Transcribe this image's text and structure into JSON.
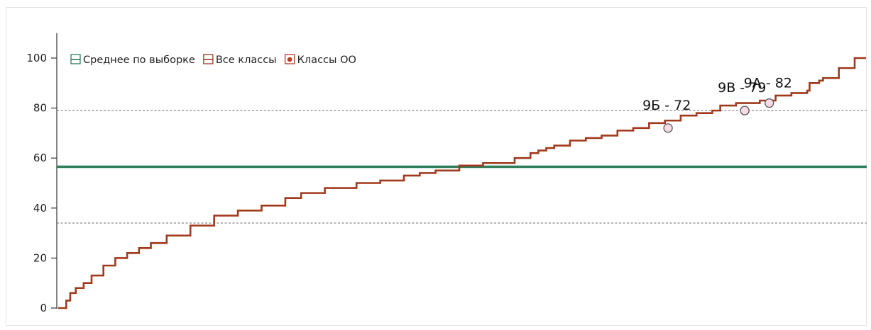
{
  "chart_data": {
    "type": "line",
    "title": "",
    "xlabel": "",
    "ylabel": "",
    "ylim": [
      0,
      110
    ],
    "y_ticks": [
      0,
      20,
      40,
      60,
      80,
      100
    ],
    "grid": false,
    "legend_position": "top-left",
    "legend": [
      {
        "label": "Среднее по выборке",
        "color": "#2e7d5b"
      },
      {
        "label": "Все классы",
        "color": "#a0391c"
      },
      {
        "label": "Классы ОО",
        "color": "#c0392b"
      }
    ],
    "mean_line": {
      "value": 56.5,
      "color": "#2e7d5b"
    },
    "reference_lines": [
      {
        "value": 79,
        "style": "dashed",
        "color": "#888888"
      },
      {
        "value": 34,
        "style": "dashed",
        "color": "#888888"
      }
    ],
    "series": [
      {
        "type": "step",
        "color": "#a0391c",
        "x": [
          0,
          0.3,
          0.8,
          1.5,
          2.5,
          3.5,
          5,
          6.5,
          8,
          9.5,
          11,
          13,
          16,
          19,
          22,
          25,
          28,
          30,
          33,
          37,
          40,
          43,
          45,
          47,
          50,
          53,
          55,
          57,
          59,
          60,
          61,
          62,
          64,
          66,
          68,
          70,
          72,
          74,
          76,
          78,
          80,
          82,
          83,
          85,
          87,
          88,
          90,
          92,
          94,
          94.3,
          95.5,
          96,
          98,
          100
        ],
        "y": [
          0,
          3,
          6,
          8,
          10,
          13,
          17,
          20,
          22,
          24,
          26,
          29,
          33,
          37,
          39,
          41,
          44,
          46,
          48,
          50,
          51,
          53,
          54,
          55,
          57,
          58,
          58,
          60,
          62,
          63,
          64,
          65,
          67,
          68,
          69,
          71,
          72,
          74,
          75,
          77,
          78,
          79,
          81,
          82,
          82,
          83,
          85,
          86,
          87,
          90,
          91,
          92,
          96,
          100
        ]
      }
    ],
    "highlights": [
      {
        "label": "9Б - 72",
        "x": 76.4,
        "y": 72
      },
      {
        "label": "9В - 79",
        "x": 86.1,
        "y": 79
      },
      {
        "label": "9А - 82",
        "x": 89.2,
        "y": 82
      }
    ]
  }
}
